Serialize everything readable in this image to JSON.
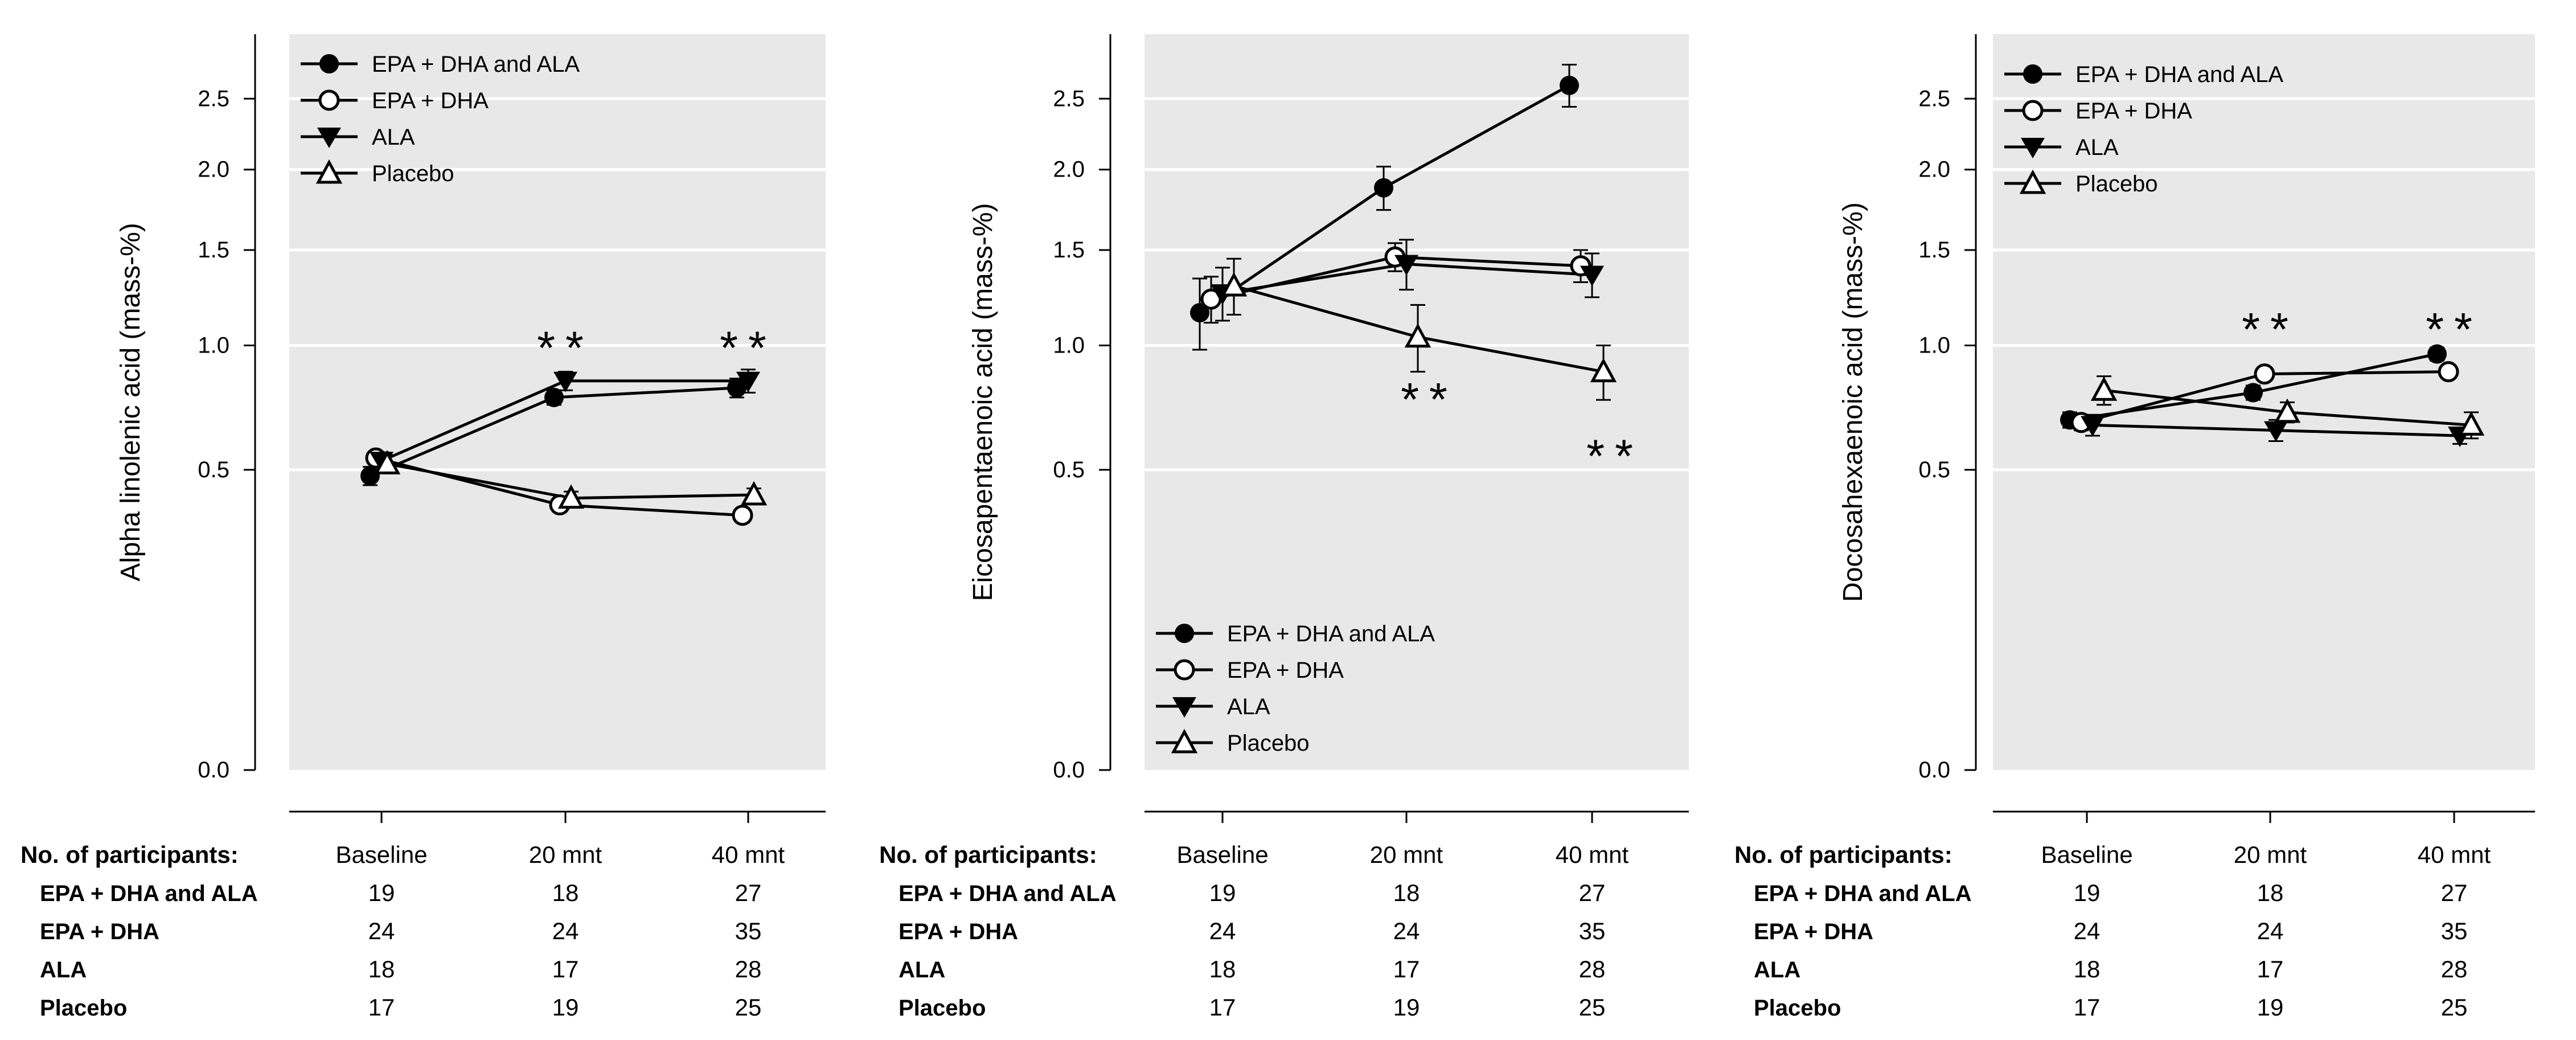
{
  "figure": {
    "legend_labels": [
      "EPA + DHA and ALA",
      "EPA + DHA",
      "ALA",
      "Placebo"
    ],
    "significance_mark": "**",
    "table": {
      "header": "No. of participants:",
      "timepoints": [
        "Baseline",
        "20 mnt",
        "40 mnt"
      ],
      "rows": [
        {
          "label": "EPA + DHA and ALA",
          "values": [
            "19",
            "18",
            "27"
          ]
        },
        {
          "label": "EPA + DHA",
          "values": [
            "24",
            "24",
            "35"
          ]
        },
        {
          "label": "ALA",
          "values": [
            "18",
            "17",
            "28"
          ]
        },
        {
          "label": "Placebo",
          "values": [
            "17",
            "19",
            "25"
          ]
        }
      ]
    },
    "colors": {
      "panel_bg": "#e8e8e8",
      "grid": "#ffffff",
      "ink": "#000000",
      "open_fill": "#ffffff"
    }
  },
  "chart_data": [
    {
      "type": "line",
      "ylabel": "Alpha linolenic acid (mass-%)",
      "y_ticks": [
        "0.0",
        "0.5",
        "1.0",
        "1.5",
        "2.0",
        "2.5"
      ],
      "yscale": "sqrt",
      "ylim": [
        0,
        2.8
      ],
      "categories": [
        "Baseline",
        "20 mnt",
        "40 mnt"
      ],
      "legend_position": "top-left",
      "grid": true,
      "series": [
        {
          "name": "EPA + DHA and ALA",
          "marker": "filled-circle",
          "values": [
            0.48,
            0.77,
            0.81
          ],
          "error": [
            0.03,
            0.03,
            0.04
          ]
        },
        {
          "name": "EPA + DHA",
          "marker": "open-circle",
          "values": [
            0.54,
            0.39,
            0.36
          ],
          "error": [
            0.02,
            0.02,
            0.02
          ]
        },
        {
          "name": "ALA",
          "marker": "filled-triangle-down",
          "values": [
            0.53,
            0.84,
            0.84
          ],
          "error": [
            0.03,
            0.04,
            0.05
          ]
        },
        {
          "name": "Placebo",
          "marker": "open-triangle-up",
          "values": [
            0.52,
            0.41,
            0.42
          ],
          "error": [
            0.03,
            0.02,
            0.02
          ]
        }
      ],
      "annotations": [
        {
          "text": "**",
          "category": "20 mnt",
          "y": 1.02
        },
        {
          "text": "**",
          "category": "40 mnt",
          "y": 1.02
        }
      ]
    },
    {
      "type": "line",
      "ylabel": "Eicosapentaenoic acid (mass-%)",
      "y_ticks": [
        "0.0",
        "0.5",
        "1.0",
        "1.5",
        "2.0",
        "2.5"
      ],
      "yscale": "sqrt",
      "ylim": [
        0,
        2.8
      ],
      "categories": [
        "Baseline",
        "20 mnt",
        "40 mnt"
      ],
      "legend_position": "bottom-left",
      "grid": true,
      "series": [
        {
          "name": "EPA + DHA and ALA",
          "marker": "filled-circle",
          "values": [
            1.16,
            1.88,
            2.6
          ],
          "error": [
            0.18,
            0.14,
            0.16
          ]
        },
        {
          "name": "EPA + DHA",
          "marker": "open-circle",
          "values": [
            1.23,
            1.46,
            1.41
          ],
          "error": [
            0.12,
            0.08,
            0.09
          ]
        },
        {
          "name": "ALA",
          "marker": "filled-triangle-down",
          "values": [
            1.26,
            1.42,
            1.36
          ],
          "error": [
            0.14,
            0.14,
            0.12
          ]
        },
        {
          "name": "Placebo",
          "marker": "open-triangle-up",
          "values": [
            1.3,
            1.04,
            0.88
          ],
          "error": [
            0.15,
            0.16,
            0.12
          ]
        }
      ],
      "annotations": [
        {
          "text": "**",
          "category": "20 mnt",
          "y": 0.79
        },
        {
          "text": "**",
          "category": "40 mnt",
          "y": 0.57
        }
      ]
    },
    {
      "type": "line",
      "ylabel": "Docosahexaenoic acid  (mass-%)",
      "y_ticks": [
        "0.0",
        "0.5",
        "1.0",
        "1.5",
        "2.0",
        "2.5"
      ],
      "yscale": "sqrt",
      "ylim": [
        0,
        2.8
      ],
      "categories": [
        "Baseline",
        "20 mnt",
        "40 mnt"
      ],
      "legend_position": "top-left",
      "grid": true,
      "series": [
        {
          "name": "EPA + DHA and ALA",
          "marker": "filled-circle",
          "values": [
            0.68,
            0.79,
            0.96
          ],
          "error": [
            0.03,
            0.03,
            0.03
          ]
        },
        {
          "name": "EPA + DHA",
          "marker": "open-circle",
          "values": [
            0.67,
            0.87,
            0.88
          ],
          "error": [
            0.03,
            0.02,
            0.02
          ]
        },
        {
          "name": "ALA",
          "marker": "filled-triangle-down",
          "values": [
            0.66,
            0.64,
            0.62
          ],
          "error": [
            0.04,
            0.04,
            0.03
          ]
        },
        {
          "name": "Placebo",
          "marker": "open-triangle-up",
          "values": [
            0.8,
            0.71,
            0.66
          ],
          "error": [
            0.06,
            0.04,
            0.05
          ]
        }
      ],
      "annotations": [
        {
          "text": "**",
          "category": "20 mnt",
          "y": 1.11
        },
        {
          "text": "**",
          "category": "40 mnt",
          "y": 1.11
        }
      ]
    }
  ]
}
